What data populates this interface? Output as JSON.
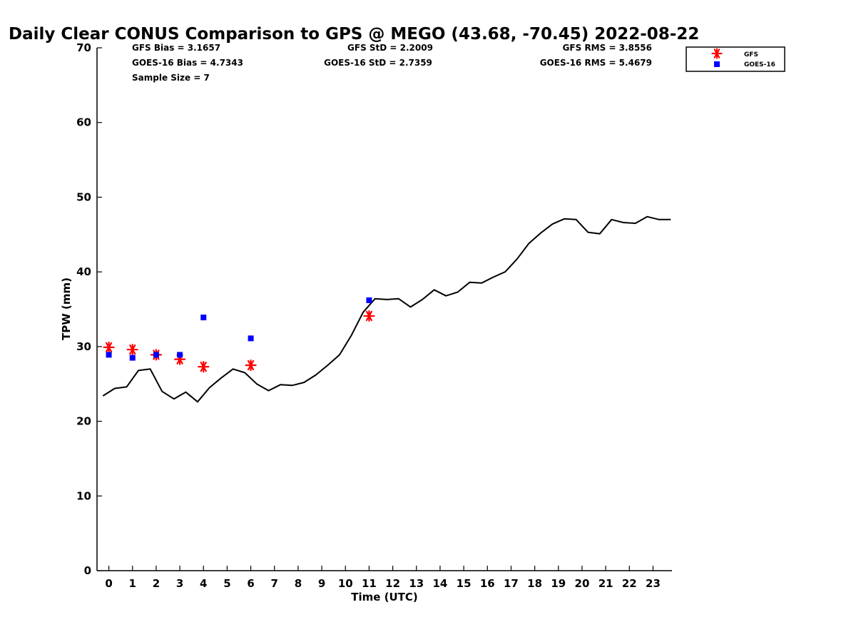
{
  "chart_data": {
    "type": "line",
    "title": "Daily Clear CONUS Comparison to GPS @ MEGO (43.68, -70.45) 2022-08-22",
    "xlabel": "Time (UTC)",
    "ylabel": "TPW (mm)",
    "xlim": [
      -0.5,
      23.8
    ],
    "ylim": [
      0,
      70
    ],
    "x_ticks": [
      "0",
      "1",
      "2",
      "3",
      "4",
      "5",
      "6",
      "7",
      "8",
      "9",
      "10",
      "11",
      "12",
      "13",
      "14",
      "15",
      "16",
      "17",
      "18",
      "19",
      "20",
      "21",
      "22",
      "23"
    ],
    "y_ticks": [
      "0",
      "10",
      "20",
      "30",
      "40",
      "50",
      "60",
      "70"
    ],
    "grid": false,
    "legend_position": "top-right",
    "series": [
      {
        "name": "",
        "style": "line",
        "color": "#000000",
        "x": [
          -0.25,
          0.25,
          0.75,
          1.25,
          1.75,
          2.25,
          2.75,
          3.25,
          3.75,
          4.25,
          4.75,
          5.25,
          5.75,
          6.25,
          6.75,
          7.25,
          7.75,
          8.25,
          8.75,
          9.25,
          9.75,
          10.25,
          10.75,
          11.25,
          11.75,
          12.25,
          12.75,
          13.25,
          13.75,
          14.25,
          14.75,
          15.25,
          15.75,
          16.25,
          16.75,
          17.25,
          17.75,
          18.25,
          18.75,
          19.25,
          19.75,
          20.25,
          20.75,
          21.25,
          21.75,
          22.25,
          22.75,
          23.25,
          23.75
        ],
        "y": [
          23.4,
          24.4,
          24.6,
          26.8,
          27.0,
          24.0,
          23.0,
          23.9,
          22.6,
          24.5,
          25.8,
          27.0,
          26.5,
          25.0,
          24.1,
          24.9,
          24.8,
          25.2,
          26.2,
          27.5,
          28.9,
          31.5,
          34.6,
          36.4,
          36.3,
          36.4,
          35.3,
          36.3,
          37.6,
          36.8,
          37.3,
          38.6,
          38.5,
          39.3,
          40.0,
          41.7,
          43.8,
          45.2,
          46.4,
          47.1,
          47.0,
          45.3,
          45.1,
          47.0,
          46.6,
          46.5,
          47.4,
          47.0,
          47.0
        ]
      },
      {
        "name": "GFS",
        "style": "star",
        "color": "#ff0000",
        "x": [
          0,
          1,
          2,
          3,
          4,
          6,
          11
        ],
        "y": [
          29.9,
          29.6,
          28.9,
          28.3,
          27.3,
          27.5,
          34.1
        ]
      },
      {
        "name": "GOES-16",
        "style": "square",
        "color": "#0000ff",
        "x": [
          0,
          1,
          2,
          3,
          4,
          6,
          11
        ],
        "y": [
          28.9,
          28.5,
          28.9,
          28.9,
          33.9,
          31.1,
          36.2
        ]
      }
    ],
    "stats": [
      {
        "key": "gfs_bias",
        "text": "GFS Bias = 3.1657"
      },
      {
        "key": "gfs_std",
        "text": "GFS StD = 2.2009"
      },
      {
        "key": "gfs_rms",
        "text": "GFS RMS = 3.8556"
      },
      {
        "key": "goes_bias",
        "text": "GOES-16 Bias = 4.7343"
      },
      {
        "key": "goes_std",
        "text": "GOES-16 StD = 2.7359"
      },
      {
        "key": "goes_rms",
        "text": "GOES-16 RMS = 5.4679"
      },
      {
        "key": "sample_size",
        "text": "Sample Size = 7"
      }
    ]
  }
}
